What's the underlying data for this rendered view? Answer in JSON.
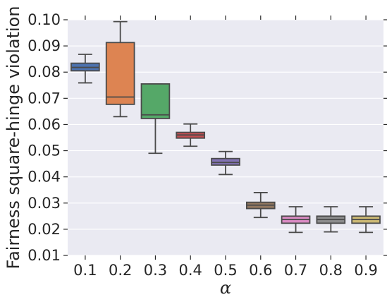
{
  "chart_data": {
    "type": "box",
    "xlabel": "α",
    "ylabel": "Fairness square-hinge violation",
    "ylim": [
      0.01,
      0.1
    ],
    "yticks": [
      "0.01",
      "0.02",
      "0.03",
      "0.04",
      "0.05",
      "0.06",
      "0.07",
      "0.08",
      "0.09",
      "0.10"
    ],
    "categories": [
      "0.1",
      "0.2",
      "0.3",
      "0.4",
      "0.5",
      "0.6",
      "0.7",
      "0.8",
      "0.9"
    ],
    "boxes": [
      {
        "min": 0.0759,
        "q1": 0.0805,
        "median": 0.0818,
        "q3": 0.0834,
        "max": 0.0868,
        "color": "#4c72b0"
      },
      {
        "min": 0.063,
        "q1": 0.0677,
        "median": 0.0705,
        "q3": 0.0913,
        "max": 0.0993,
        "color": "#dd8452"
      },
      {
        "min": 0.049,
        "q1": 0.0623,
        "median": 0.0637,
        "q3": 0.0755,
        "max": 0.0755,
        "color": "#55a868"
      },
      {
        "min": 0.0517,
        "q1": 0.0548,
        "median": 0.056,
        "q3": 0.057,
        "max": 0.0602,
        "color": "#c44e52"
      },
      {
        "min": 0.0409,
        "q1": 0.0445,
        "median": 0.0455,
        "q3": 0.047,
        "max": 0.0497,
        "color": "#8172b3"
      },
      {
        "min": 0.0245,
        "q1": 0.0279,
        "median": 0.0292,
        "q3": 0.0303,
        "max": 0.034,
        "color": "#937860"
      },
      {
        "min": 0.0188,
        "q1": 0.0223,
        "median": 0.0237,
        "q3": 0.025,
        "max": 0.0286,
        "color": "#da8bc3"
      },
      {
        "min": 0.019,
        "q1": 0.0223,
        "median": 0.0237,
        "q3": 0.025,
        "max": 0.0286,
        "color": "#8c8c8c"
      },
      {
        "min": 0.0188,
        "q1": 0.0223,
        "median": 0.0237,
        "q3": 0.025,
        "max": 0.0286,
        "color": "#ccb974"
      }
    ],
    "grid": true,
    "background": "#eaeaf2",
    "line_color": "#4a4a4a"
  }
}
